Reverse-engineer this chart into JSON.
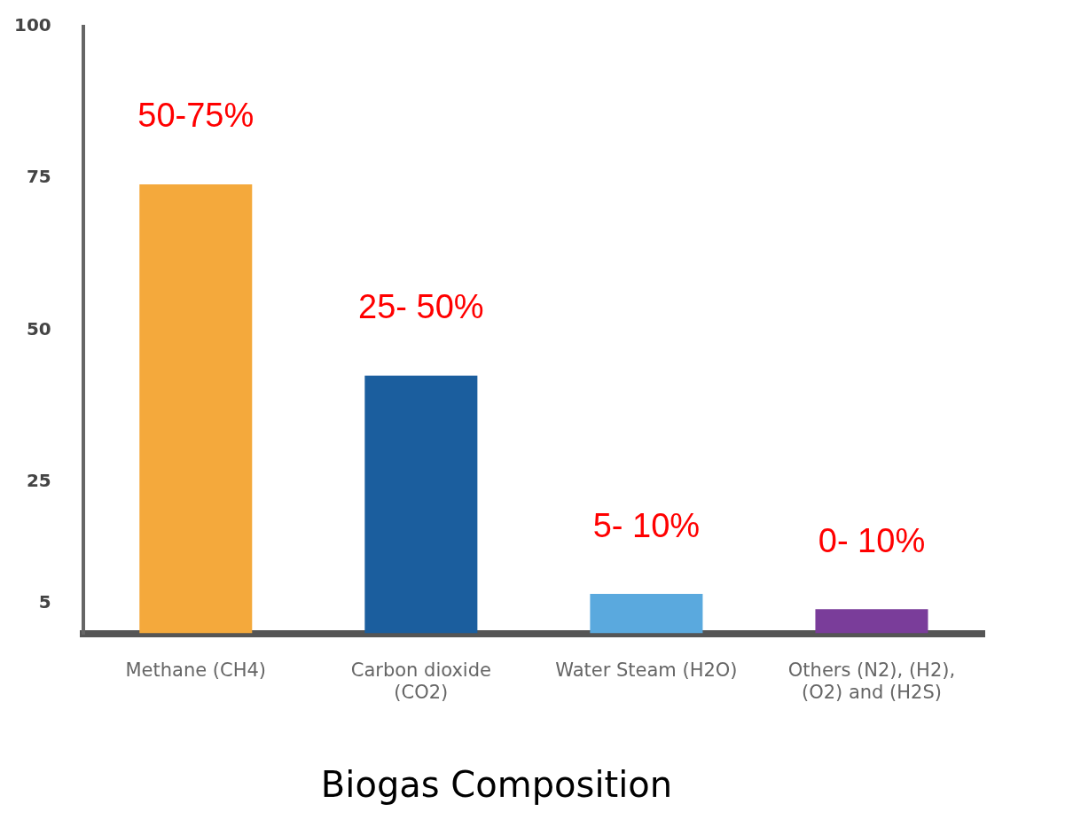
{
  "chart_data": {
    "type": "bar",
    "title": "Biogas Composition",
    "categories": [
      "Methane (CH4)",
      "Carbon dioxide (CO2)",
      "Water Steam (H2O)",
      "Others (N2), (H2), (O2) and (H2S)"
    ],
    "values": [
      74,
      42.5,
      6.5,
      4
    ],
    "colors": [
      "#f4a93c",
      "#1b5e9e",
      "#5aa9de",
      "#7a3d9a"
    ],
    "annotations": [
      "50-75%",
      "25- 50%",
      "5- 10%",
      "0- 10%"
    ],
    "ylim": [
      0,
      100
    ],
    "yticks": [
      5,
      25,
      50,
      75,
      100
    ],
    "grid": false,
    "legend": false
  }
}
